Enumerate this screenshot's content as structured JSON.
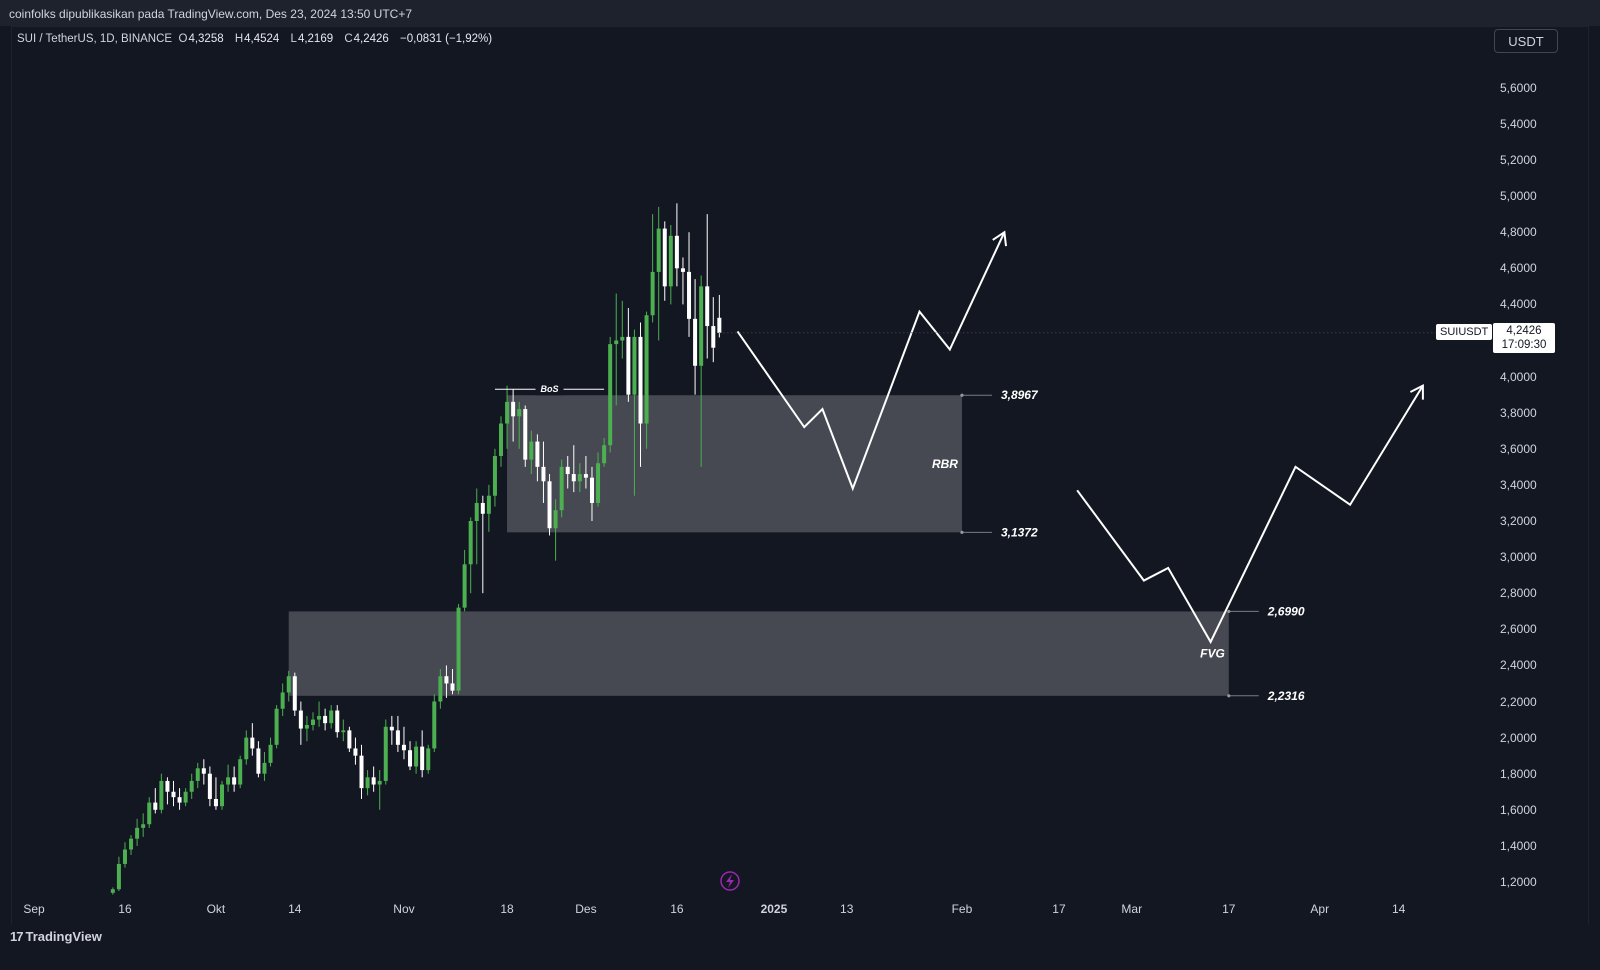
{
  "banner": {
    "text": "coinfolks dipublikasikan pada TradingView.com, Des 23, 2024 13:50 UTC+7"
  },
  "symbol": {
    "name": "SUI / TetherUS, 1D, BINANCE",
    "open_k": "O",
    "open": "4,3258",
    "high_k": "H",
    "high": "4,4524",
    "low_k": "L",
    "low": "4,2169",
    "close_k": "C",
    "close": "4,2426",
    "change": "−0,0831 (−1,92%)"
  },
  "currency_button": "USDT",
  "last_price": {
    "symbol": "SUIUSDT",
    "price": "4,2426",
    "countdown": "17:09:30"
  },
  "footer": {
    "brand": "TradingView",
    "mark": "17"
  },
  "colors": {
    "up": "#4caf50",
    "down": "#ffffff",
    "zone": "#4a4c55",
    "background": "#131722"
  },
  "icons": {
    "flash": "lightning-icon"
  },
  "chart_data": {
    "type": "candlestick",
    "interval": "1D",
    "y_axis": {
      "ticks": [
        "5,6000",
        "5,4000",
        "5,2000",
        "5,0000",
        "4,8000",
        "4,6000",
        "4,4000",
        "4,2000",
        "4,0000",
        "3,8000",
        "3,6000",
        "3,4000",
        "3,2000",
        "3,0000",
        "2,8000",
        "2,6000",
        "2,4000",
        "2,2000",
        "2,0000",
        "1,8000",
        "1,6000",
        "1,4000",
        "1,2000"
      ],
      "range": [
        1.1,
        5.7
      ]
    },
    "x_axis": {
      "ticks": [
        {
          "label": "Sep",
          "date": "2024-09-01",
          "bold": false
        },
        {
          "label": "16",
          "date": "2024-09-16",
          "bold": false
        },
        {
          "label": "Okt",
          "date": "2024-10-01",
          "bold": false
        },
        {
          "label": "14",
          "date": "2024-10-14",
          "bold": false
        },
        {
          "label": "Nov",
          "date": "2024-11-01",
          "bold": false
        },
        {
          "label": "18",
          "date": "2024-11-18",
          "bold": false
        },
        {
          "label": "Des",
          "date": "2024-12-01",
          "bold": false
        },
        {
          "label": "16",
          "date": "2024-12-16",
          "bold": false
        },
        {
          "label": "2025",
          "date": "2025-01-01",
          "bold": true
        },
        {
          "label": "13",
          "date": "2025-01-13",
          "bold": false
        },
        {
          "label": "Feb",
          "date": "2025-02-01",
          "bold": false
        },
        {
          "label": "17",
          "date": "2025-02-17",
          "bold": false
        },
        {
          "label": "Mar",
          "date": "2025-03-01",
          "bold": false
        },
        {
          "label": "17",
          "date": "2025-03-17",
          "bold": false
        },
        {
          "label": "Apr",
          "date": "2025-04-01",
          "bold": false
        },
        {
          "label": "14",
          "date": "2025-04-14",
          "bold": false
        }
      ]
    },
    "candles": [
      {
        "date": "2024-09-14",
        "o": 1.14,
        "h": 1.17,
        "l": 1.13,
        "c": 1.16
      },
      {
        "date": "2024-09-15",
        "o": 1.16,
        "h": 1.34,
        "l": 1.15,
        "c": 1.3
      },
      {
        "date": "2024-09-16",
        "o": 1.3,
        "h": 1.42,
        "l": 1.28,
        "c": 1.38
      },
      {
        "date": "2024-09-17",
        "o": 1.38,
        "h": 1.46,
        "l": 1.35,
        "c": 1.44
      },
      {
        "date": "2024-09-18",
        "o": 1.44,
        "h": 1.55,
        "l": 1.4,
        "c": 1.5
      },
      {
        "date": "2024-09-19",
        "o": 1.5,
        "h": 1.58,
        "l": 1.45,
        "c": 1.52
      },
      {
        "date": "2024-09-20",
        "o": 1.52,
        "h": 1.67,
        "l": 1.5,
        "c": 1.64
      },
      {
        "date": "2024-09-21",
        "o": 1.64,
        "h": 1.72,
        "l": 1.58,
        "c": 1.6
      },
      {
        "date": "2024-09-22",
        "o": 1.6,
        "h": 1.8,
        "l": 1.58,
        "c": 1.76
      },
      {
        "date": "2024-09-23",
        "o": 1.76,
        "h": 1.78,
        "l": 1.63,
        "c": 1.7
      },
      {
        "date": "2024-09-24",
        "o": 1.7,
        "h": 1.76,
        "l": 1.62,
        "c": 1.67
      },
      {
        "date": "2024-09-25",
        "o": 1.67,
        "h": 1.72,
        "l": 1.6,
        "c": 1.64
      },
      {
        "date": "2024-09-26",
        "o": 1.64,
        "h": 1.72,
        "l": 1.62,
        "c": 1.7
      },
      {
        "date": "2024-09-27",
        "o": 1.7,
        "h": 1.8,
        "l": 1.66,
        "c": 1.76
      },
      {
        "date": "2024-09-28",
        "o": 1.76,
        "h": 1.86,
        "l": 1.72,
        "c": 1.83
      },
      {
        "date": "2024-09-29",
        "o": 1.83,
        "h": 1.88,
        "l": 1.74,
        "c": 1.8
      },
      {
        "date": "2024-09-30",
        "o": 1.8,
        "h": 1.84,
        "l": 1.62,
        "c": 1.66
      },
      {
        "date": "2024-10-01",
        "o": 1.66,
        "h": 1.78,
        "l": 1.6,
        "c": 1.62
      },
      {
        "date": "2024-10-02",
        "o": 1.62,
        "h": 1.76,
        "l": 1.6,
        "c": 1.74
      },
      {
        "date": "2024-10-03",
        "o": 1.74,
        "h": 1.85,
        "l": 1.7,
        "c": 1.78
      },
      {
        "date": "2024-10-04",
        "o": 1.78,
        "h": 1.84,
        "l": 1.7,
        "c": 1.74
      },
      {
        "date": "2024-10-05",
        "o": 1.74,
        "h": 1.9,
        "l": 1.72,
        "c": 1.88
      },
      {
        "date": "2024-10-06",
        "o": 1.88,
        "h": 2.04,
        "l": 1.85,
        "c": 2.0
      },
      {
        "date": "2024-10-07",
        "o": 2.0,
        "h": 2.08,
        "l": 1.9,
        "c": 1.94
      },
      {
        "date": "2024-10-08",
        "o": 1.94,
        "h": 1.98,
        "l": 1.78,
        "c": 1.8
      },
      {
        "date": "2024-10-09",
        "o": 1.8,
        "h": 1.92,
        "l": 1.76,
        "c": 1.86
      },
      {
        "date": "2024-10-10",
        "o": 1.86,
        "h": 2.0,
        "l": 1.84,
        "c": 1.96
      },
      {
        "date": "2024-10-11",
        "o": 1.96,
        "h": 2.18,
        "l": 1.94,
        "c": 2.16
      },
      {
        "date": "2024-10-12",
        "o": 2.16,
        "h": 2.3,
        "l": 2.12,
        "c": 2.25
      },
      {
        "date": "2024-10-13",
        "o": 2.25,
        "h": 2.37,
        "l": 2.2,
        "c": 2.34
      },
      {
        "date": "2024-10-14",
        "o": 2.34,
        "h": 2.36,
        "l": 2.12,
        "c": 2.15
      },
      {
        "date": "2024-10-15",
        "o": 2.15,
        "h": 2.2,
        "l": 1.96,
        "c": 2.05
      },
      {
        "date": "2024-10-16",
        "o": 2.05,
        "h": 2.12,
        "l": 1.98,
        "c": 2.07
      },
      {
        "date": "2024-10-17",
        "o": 2.07,
        "h": 2.14,
        "l": 2.04,
        "c": 2.1
      },
      {
        "date": "2024-10-18",
        "o": 2.1,
        "h": 2.2,
        "l": 2.06,
        "c": 2.12
      },
      {
        "date": "2024-10-19",
        "o": 2.12,
        "h": 2.16,
        "l": 2.04,
        "c": 2.08
      },
      {
        "date": "2024-10-20",
        "o": 2.08,
        "h": 2.18,
        "l": 2.05,
        "c": 2.15
      },
      {
        "date": "2024-10-21",
        "o": 2.15,
        "h": 2.18,
        "l": 2.0,
        "c": 2.03
      },
      {
        "date": "2024-10-22",
        "o": 2.03,
        "h": 2.1,
        "l": 1.98,
        "c": 2.04
      },
      {
        "date": "2024-10-23",
        "o": 2.04,
        "h": 2.06,
        "l": 1.92,
        "c": 1.94
      },
      {
        "date": "2024-10-24",
        "o": 1.94,
        "h": 2.0,
        "l": 1.85,
        "c": 1.9
      },
      {
        "date": "2024-10-25",
        "o": 1.9,
        "h": 1.96,
        "l": 1.66,
        "c": 1.72
      },
      {
        "date": "2024-10-26",
        "o": 1.72,
        "h": 1.82,
        "l": 1.68,
        "c": 1.78
      },
      {
        "date": "2024-10-27",
        "o": 1.78,
        "h": 1.84,
        "l": 1.7,
        "c": 1.74
      },
      {
        "date": "2024-10-28",
        "o": 1.74,
        "h": 1.82,
        "l": 1.6,
        "c": 1.76
      },
      {
        "date": "2024-10-29",
        "o": 1.76,
        "h": 2.1,
        "l": 1.74,
        "c": 2.06
      },
      {
        "date": "2024-10-30",
        "o": 2.06,
        "h": 2.12,
        "l": 1.96,
        "c": 2.04
      },
      {
        "date": "2024-10-31",
        "o": 2.04,
        "h": 2.12,
        "l": 1.92,
        "c": 1.96
      },
      {
        "date": "2024-11-01",
        "o": 1.96,
        "h": 2.06,
        "l": 1.88,
        "c": 1.93
      },
      {
        "date": "2024-11-02",
        "o": 1.93,
        "h": 1.98,
        "l": 1.82,
        "c": 1.84
      },
      {
        "date": "2024-11-03",
        "o": 1.84,
        "h": 1.98,
        "l": 1.8,
        "c": 1.95
      },
      {
        "date": "2024-11-04",
        "o": 1.95,
        "h": 2.04,
        "l": 1.78,
        "c": 1.82
      },
      {
        "date": "2024-11-05",
        "o": 1.82,
        "h": 1.96,
        "l": 1.8,
        "c": 1.94
      },
      {
        "date": "2024-11-06",
        "o": 1.94,
        "h": 2.24,
        "l": 1.92,
        "c": 2.2
      },
      {
        "date": "2024-11-07",
        "o": 2.2,
        "h": 2.38,
        "l": 2.16,
        "c": 2.34
      },
      {
        "date": "2024-11-08",
        "o": 2.34,
        "h": 2.4,
        "l": 2.22,
        "c": 2.3
      },
      {
        "date": "2024-11-09",
        "o": 2.3,
        "h": 2.38,
        "l": 2.24,
        "c": 2.26
      },
      {
        "date": "2024-11-10",
        "o": 2.26,
        "h": 2.74,
        "l": 2.24,
        "c": 2.72
      },
      {
        "date": "2024-11-11",
        "o": 2.72,
        "h": 3.04,
        "l": 2.7,
        "c": 2.96
      },
      {
        "date": "2024-11-12",
        "o": 2.96,
        "h": 3.22,
        "l": 2.8,
        "c": 3.2
      },
      {
        "date": "2024-11-13",
        "o": 3.2,
        "h": 3.38,
        "l": 2.96,
        "c": 3.3
      },
      {
        "date": "2024-11-14",
        "o": 3.3,
        "h": 3.34,
        "l": 2.8,
        "c": 3.24
      },
      {
        "date": "2024-11-15",
        "o": 3.24,
        "h": 3.4,
        "l": 3.14,
        "c": 3.34
      },
      {
        "date": "2024-11-16",
        "o": 3.34,
        "h": 3.6,
        "l": 3.28,
        "c": 3.56
      },
      {
        "date": "2024-11-17",
        "o": 3.56,
        "h": 3.78,
        "l": 3.5,
        "c": 3.74
      },
      {
        "date": "2024-11-18",
        "o": 3.74,
        "h": 3.95,
        "l": 3.6,
        "c": 3.86
      },
      {
        "date": "2024-11-19",
        "o": 3.86,
        "h": 3.93,
        "l": 3.64,
        "c": 3.78
      },
      {
        "date": "2024-11-20",
        "o": 3.78,
        "h": 3.86,
        "l": 3.6,
        "c": 3.82
      },
      {
        "date": "2024-11-21",
        "o": 3.82,
        "h": 3.84,
        "l": 3.5,
        "c": 3.54
      },
      {
        "date": "2024-11-22",
        "o": 3.54,
        "h": 3.7,
        "l": 3.46,
        "c": 3.64
      },
      {
        "date": "2024-11-23",
        "o": 3.64,
        "h": 3.68,
        "l": 3.42,
        "c": 3.5
      },
      {
        "date": "2024-11-24",
        "o": 3.5,
        "h": 3.64,
        "l": 3.3,
        "c": 3.42
      },
      {
        "date": "2024-11-25",
        "o": 3.42,
        "h": 3.46,
        "l": 3.12,
        "c": 3.16
      },
      {
        "date": "2024-11-26",
        "o": 3.16,
        "h": 3.32,
        "l": 2.98,
        "c": 3.26
      },
      {
        "date": "2024-11-27",
        "o": 3.26,
        "h": 3.54,
        "l": 3.22,
        "c": 3.5
      },
      {
        "date": "2024-11-28",
        "o": 3.5,
        "h": 3.56,
        "l": 3.38,
        "c": 3.46
      },
      {
        "date": "2024-11-29",
        "o": 3.46,
        "h": 3.62,
        "l": 3.36,
        "c": 3.42
      },
      {
        "date": "2024-11-30",
        "o": 3.42,
        "h": 3.52,
        "l": 3.36,
        "c": 3.46
      },
      {
        "date": "2024-12-01",
        "o": 3.46,
        "h": 3.56,
        "l": 3.38,
        "c": 3.44
      },
      {
        "date": "2024-12-02",
        "o": 3.44,
        "h": 3.5,
        "l": 3.2,
        "c": 3.3
      },
      {
        "date": "2024-12-03",
        "o": 3.3,
        "h": 3.58,
        "l": 3.28,
        "c": 3.52
      },
      {
        "date": "2024-12-04",
        "o": 3.52,
        "h": 3.66,
        "l": 3.5,
        "c": 3.62
      },
      {
        "date": "2024-12-05",
        "o": 3.62,
        "h": 4.22,
        "l": 3.58,
        "c": 4.18
      },
      {
        "date": "2024-12-06",
        "o": 4.18,
        "h": 4.46,
        "l": 3.84,
        "c": 4.2
      },
      {
        "date": "2024-12-07",
        "o": 4.2,
        "h": 4.42,
        "l": 4.1,
        "c": 4.22
      },
      {
        "date": "2024-12-08",
        "o": 4.22,
        "h": 4.38,
        "l": 3.86,
        "c": 3.9
      },
      {
        "date": "2024-12-09",
        "o": 3.9,
        "h": 4.26,
        "l": 3.34,
        "c": 4.22
      },
      {
        "date": "2024-12-10",
        "o": 4.22,
        "h": 4.3,
        "l": 3.5,
        "c": 3.74
      },
      {
        "date": "2024-12-11",
        "o": 3.74,
        "h": 4.36,
        "l": 3.6,
        "c": 4.34
      },
      {
        "date": "2024-12-12",
        "o": 4.34,
        "h": 4.9,
        "l": 4.3,
        "c": 4.58
      },
      {
        "date": "2024-12-13",
        "o": 4.58,
        "h": 4.94,
        "l": 4.2,
        "c": 4.82
      },
      {
        "date": "2024-12-14",
        "o": 4.82,
        "h": 4.86,
        "l": 4.42,
        "c": 4.5
      },
      {
        "date": "2024-12-15",
        "o": 4.5,
        "h": 4.84,
        "l": 4.4,
        "c": 4.78
      },
      {
        "date": "2024-12-16",
        "o": 4.78,
        "h": 4.96,
        "l": 4.5,
        "c": 4.6
      },
      {
        "date": "2024-12-17",
        "o": 4.6,
        "h": 4.66,
        "l": 4.4,
        "c": 4.58
      },
      {
        "date": "2024-12-18",
        "o": 4.58,
        "h": 4.8,
        "l": 4.22,
        "c": 4.32
      },
      {
        "date": "2024-12-19",
        "o": 4.32,
        "h": 4.54,
        "l": 3.9,
        "c": 4.06
      },
      {
        "date": "2024-12-20",
        "o": 4.06,
        "h": 4.56,
        "l": 3.5,
        "c": 4.5
      },
      {
        "date": "2024-12-21",
        "o": 4.5,
        "h": 4.9,
        "l": 4.1,
        "c": 4.28
      },
      {
        "date": "2024-12-22",
        "o": 4.28,
        "h": 4.44,
        "l": 4.08,
        "c": 4.16
      },
      {
        "date": "2024-12-23",
        "o": 4.3258,
        "h": 4.4524,
        "l": 4.2169,
        "c": 4.2426
      }
    ],
    "zones": [
      {
        "label": "RBR",
        "top": 3.8967,
        "bottom": 3.1372,
        "from": "2024-11-18",
        "to": "2025-02-01",
        "top_label": "3,8967",
        "bottom_label": "3,1372"
      },
      {
        "label": "FVG",
        "top": 2.699,
        "bottom": 2.2316,
        "from": "2024-10-13",
        "to": "2025-03-17",
        "top_label": "2,6990",
        "bottom_label": "2,2316"
      }
    ],
    "bos": {
      "label": "BoS",
      "price": 3.93,
      "from": "2024-11-16",
      "to": "2024-12-04"
    },
    "projection_paths": [
      {
        "name": "path-1",
        "points": [
          [
            "2024-12-26",
            4.25
          ],
          [
            "2025-01-06",
            3.72
          ],
          [
            "2025-01-09",
            3.82
          ],
          [
            "2025-01-14",
            3.38
          ],
          [
            "2025-01-25",
            4.36
          ],
          [
            "2025-01-30",
            4.15
          ],
          [
            "2025-02-08",
            4.8
          ]
        ]
      },
      {
        "name": "path-2",
        "points": [
          [
            "2025-02-20",
            3.37
          ],
          [
            "2025-03-03",
            2.87
          ],
          [
            "2025-03-07",
            2.94
          ],
          [
            "2025-03-14",
            2.53
          ],
          [
            "2025-03-28",
            3.5
          ],
          [
            "2025-04-06",
            3.29
          ],
          [
            "2025-04-18",
            3.95
          ]
        ]
      }
    ]
  }
}
